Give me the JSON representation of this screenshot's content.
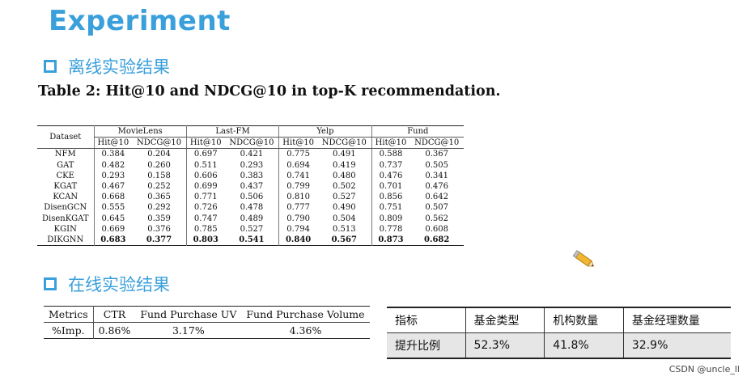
{
  "title": "Experiment",
  "offline_section": "离线实验结果",
  "online_section": "在线实验结果",
  "table_caption": "Table 2: Hit@10 and NDCG@10 in top-K recommendation.",
  "results_table": {
    "dataset_header": "Dataset",
    "groups": [
      "MovieLens",
      "Last-FM",
      "Yelp",
      "Fund"
    ],
    "metrics": [
      "Hit@10",
      "NDCG@10"
    ],
    "rows": [
      {
        "model": "NFM",
        "values": [
          "0.384",
          "0.204",
          "0.697",
          "0.421",
          "0.775",
          "0.491",
          "0.588",
          "0.367"
        ]
      },
      {
        "model": "GAT",
        "values": [
          "0.482",
          "0.260",
          "0.511",
          "0.293",
          "0.694",
          "0.419",
          "0.737",
          "0.505"
        ]
      },
      {
        "model": "CKE",
        "values": [
          "0.293",
          "0.158",
          "0.606",
          "0.383",
          "0.741",
          "0.480",
          "0.476",
          "0.341"
        ]
      },
      {
        "model": "KGAT",
        "values": [
          "0.467",
          "0.252",
          "0.699",
          "0.437",
          "0.799",
          "0.502",
          "0.701",
          "0.476"
        ]
      },
      {
        "model": "KCAN",
        "values": [
          "0.668",
          "0.365",
          "0.771",
          "0.506",
          "0.810",
          "0.527",
          "0.856",
          "0.642"
        ]
      },
      {
        "model": "DisenGCN",
        "values": [
          "0.555",
          "0.292",
          "0.726",
          "0.478",
          "0.777",
          "0.490",
          "0.751",
          "0.507"
        ]
      },
      {
        "model": "DisenKGAT",
        "values": [
          "0.645",
          "0.359",
          "0.747",
          "0.489",
          "0.790",
          "0.504",
          "0.809",
          "0.562"
        ]
      },
      {
        "model": "KGIN",
        "values": [
          "0.669",
          "0.376",
          "0.785",
          "0.527",
          "0.794",
          "0.513",
          "0.778",
          "0.608"
        ]
      },
      {
        "model": "DIKGNN",
        "values": [
          "0.683",
          "0.377",
          "0.803",
          "0.541",
          "0.840",
          "0.567",
          "0.873",
          "0.682"
        ]
      }
    ]
  },
  "online_table": {
    "headers": [
      "Metrics",
      "CTR",
      "Fund Purchase UV",
      "Fund Purchase Volume"
    ],
    "row": [
      "%Imp.",
      "0.86%",
      "3.17%",
      "4.36%"
    ]
  },
  "cn_table": {
    "header": [
      "指标",
      "基金类型",
      "机构数量",
      "基金经理数量"
    ],
    "row": [
      "提升比例",
      "52.3%",
      "41.8%",
      "32.9%"
    ]
  },
  "pencil_icon": "pencil-icon",
  "watermark": "CSDN @uncle_ll"
}
